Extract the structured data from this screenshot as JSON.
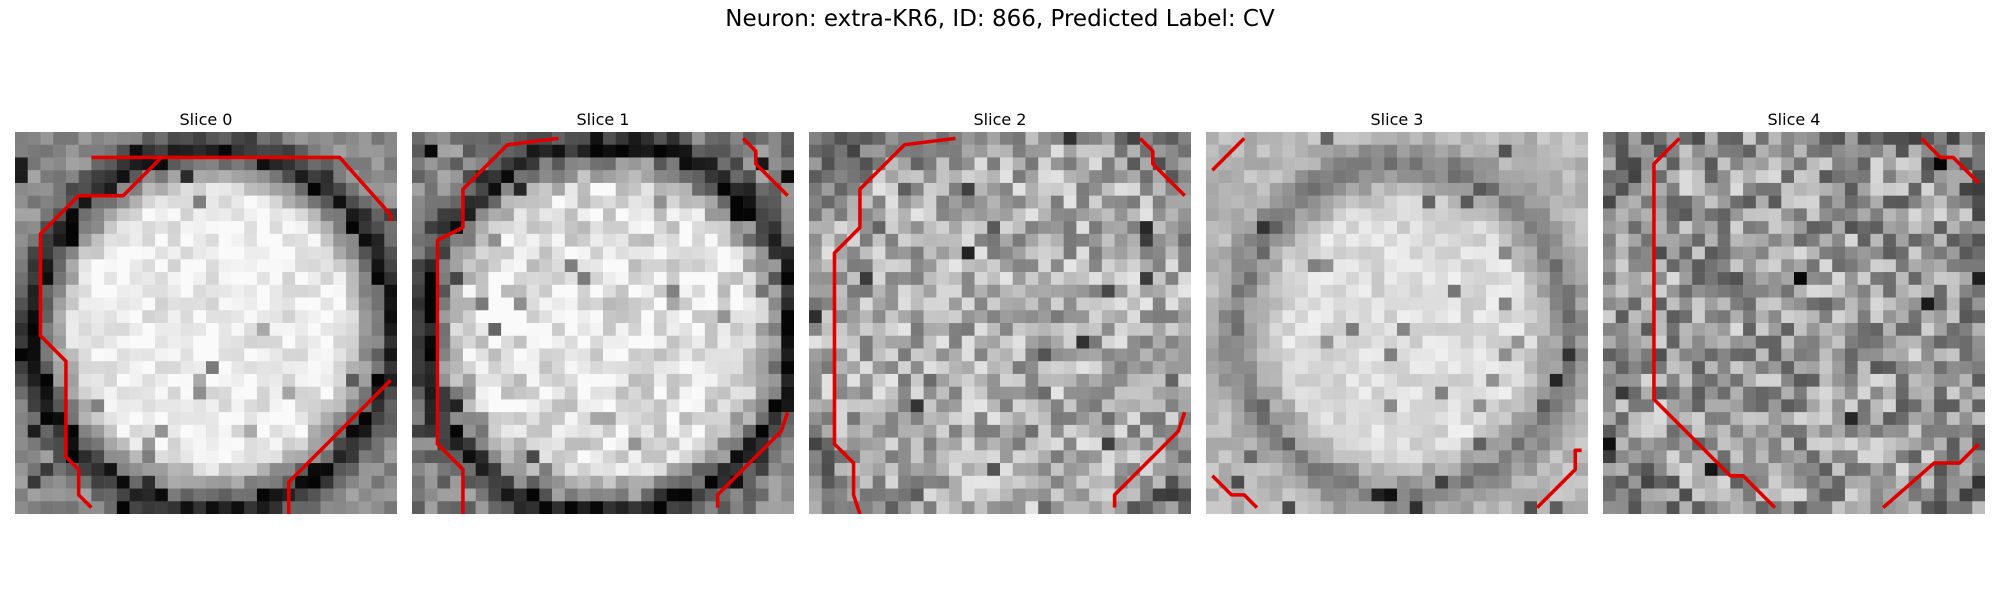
{
  "figure": {
    "title": "Neuron: extra-KR6, ID: 866, Predicted Label: CV",
    "contour_color": "#e00000"
  },
  "panels": [
    {
      "title": "Slice 0"
    },
    {
      "title": "Slice 1"
    },
    {
      "title": "Slice 2"
    },
    {
      "title": "Slice 3"
    },
    {
      "title": "Slice 4"
    }
  ]
}
